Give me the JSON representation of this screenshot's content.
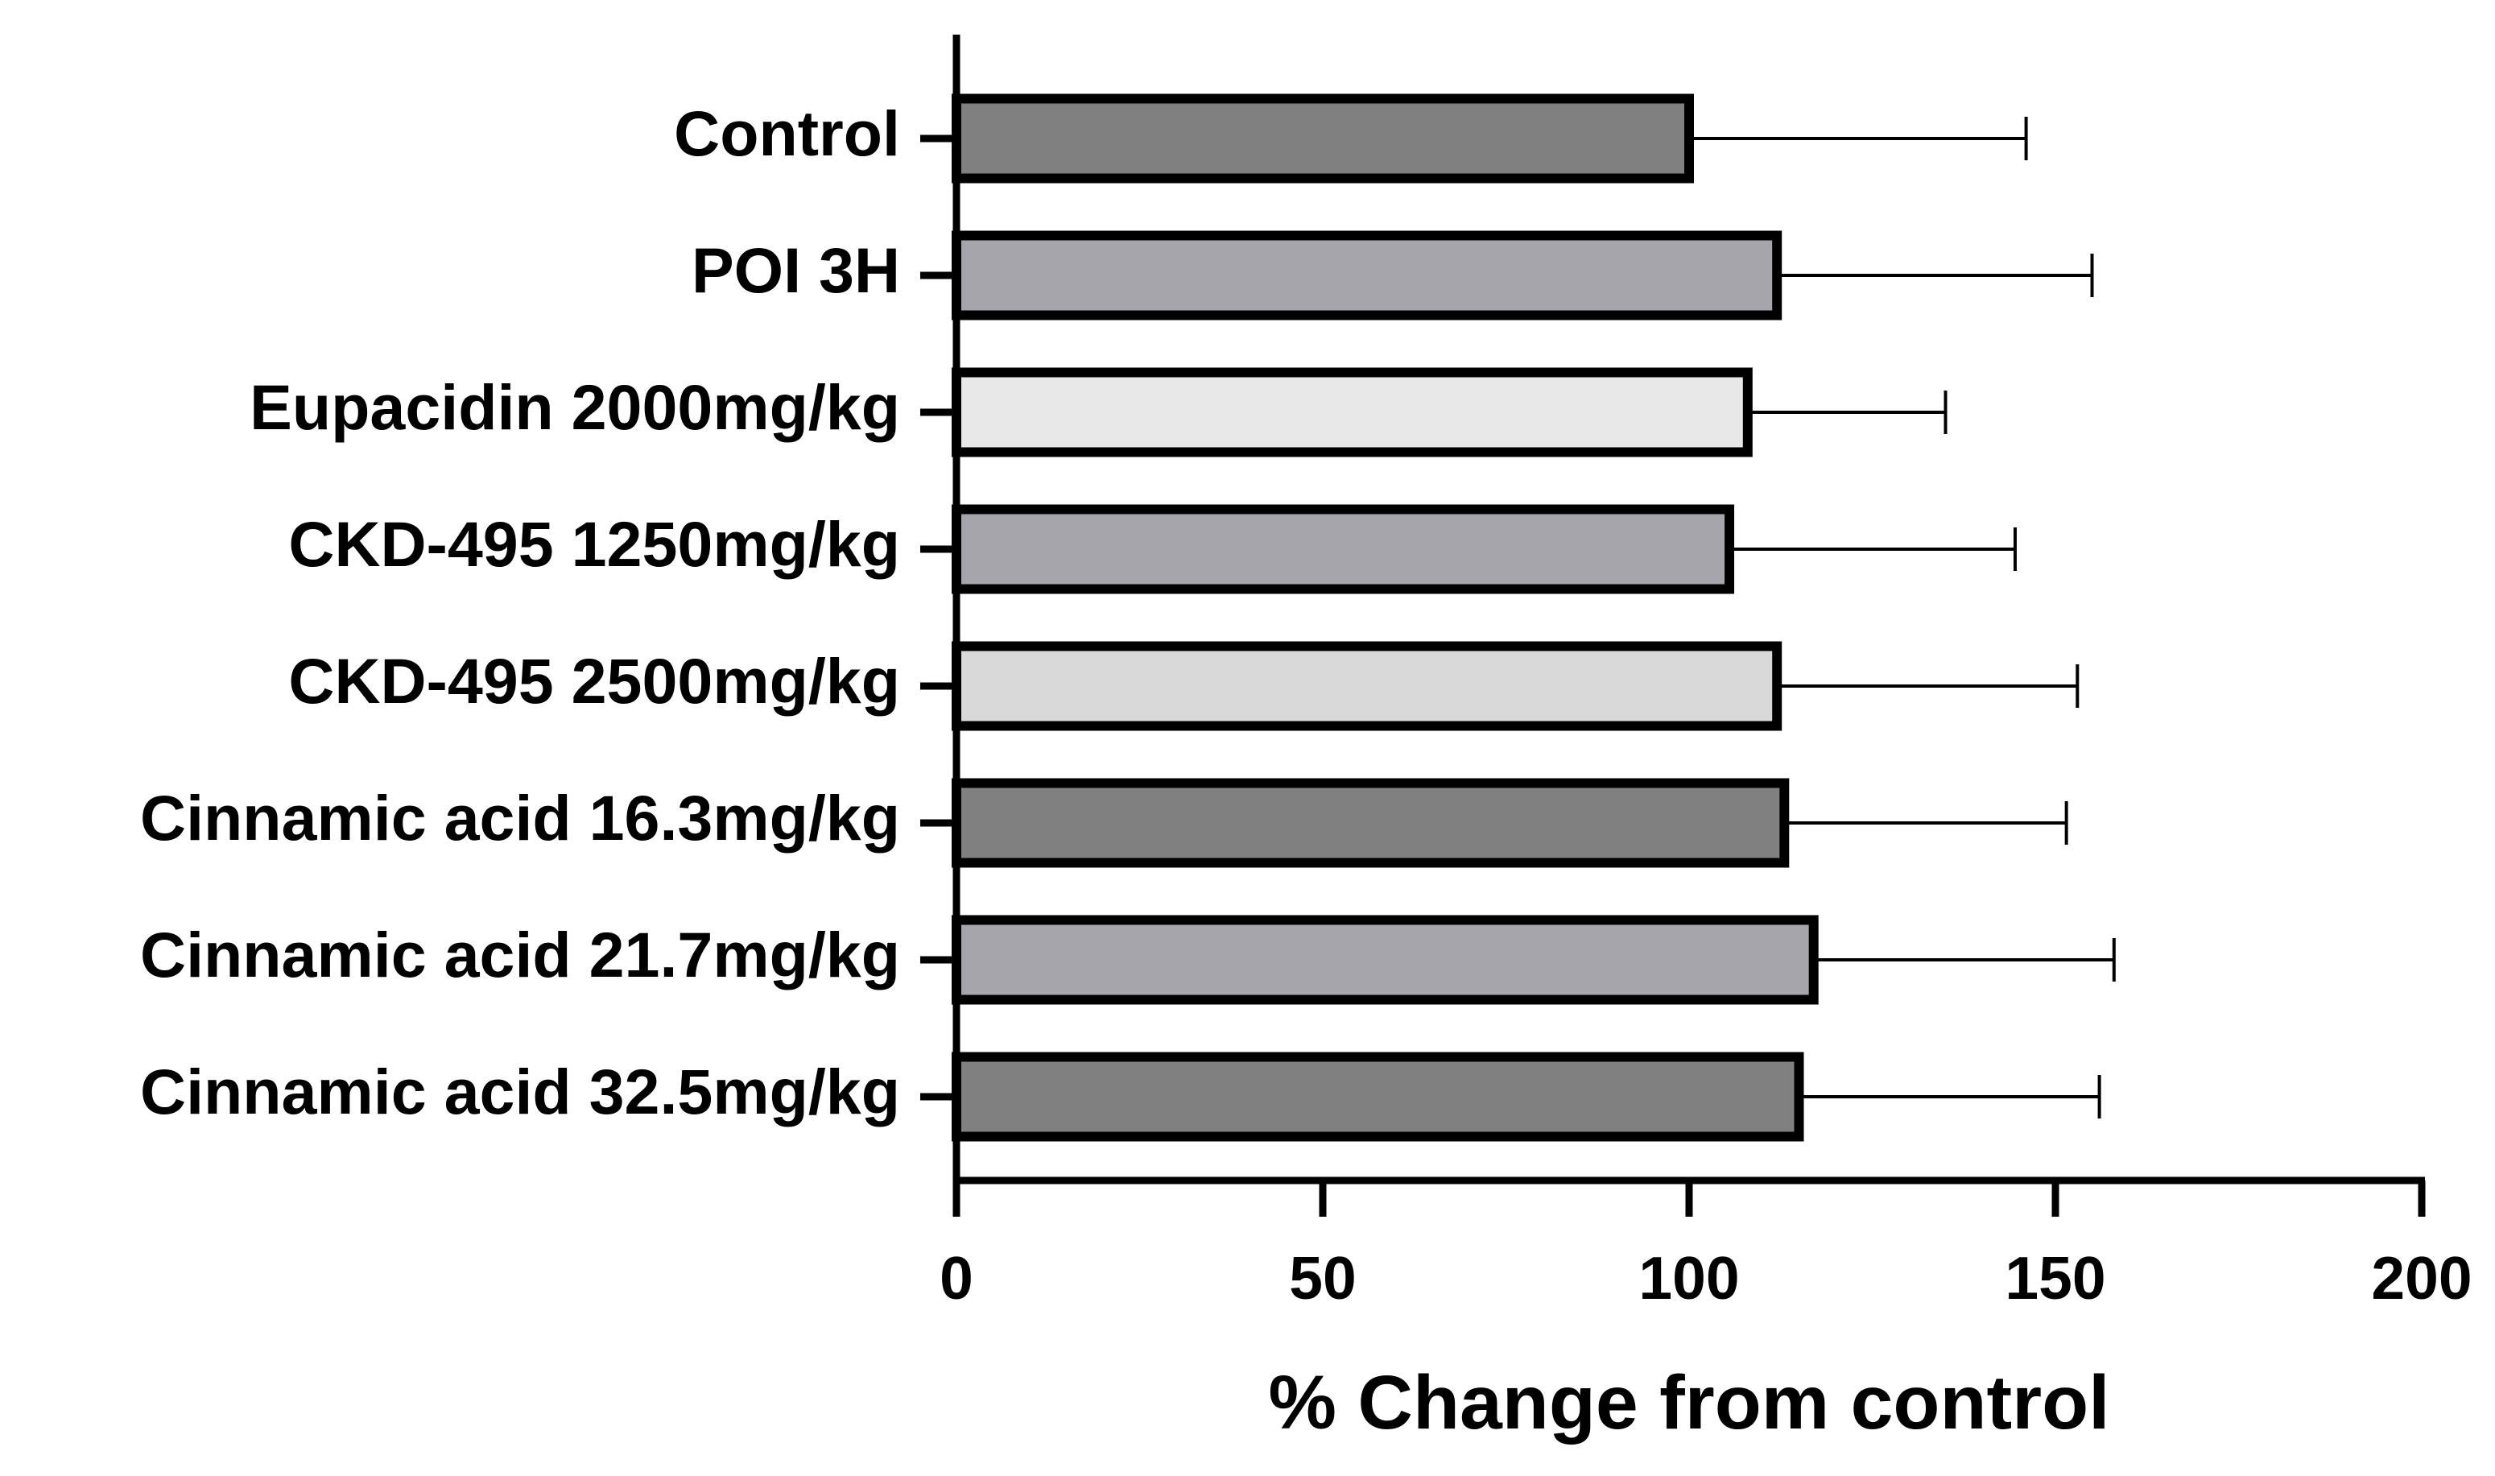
{
  "chart_data": {
    "type": "bar",
    "orientation": "horizontal",
    "x_label": "% Change from control",
    "categories": [
      "Control",
      "POI 3H",
      "Eupacidin 2000mg/kg",
      "CKD-495 1250mg/kg",
      "CKD-495 2500mg/kg",
      "Cinnamic acid 16.3mg/kg",
      "Cinnamic acid 21.7mg/kg",
      "Cinnamic acid 32.5mg/kg"
    ],
    "values": [
      100,
      112,
      108,
      105.5,
      112,
      113,
      117,
      115
    ],
    "errors": [
      46,
      43,
      27,
      39,
      41,
      38.5,
      41,
      41
    ],
    "colors": [
      "#808080",
      "#a6a5ab",
      "#e8e8e8",
      "#a6a5ab",
      "#d9d9d9",
      "#808080",
      "#a6a5ab",
      "#808080"
    ],
    "xlim": [
      0,
      200
    ],
    "xticks": [
      0,
      50,
      100,
      150,
      200
    ]
  }
}
